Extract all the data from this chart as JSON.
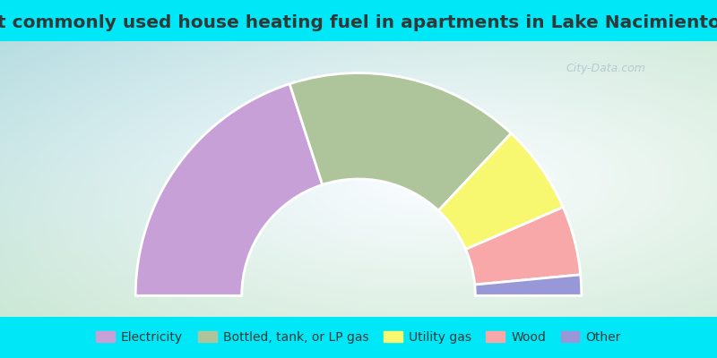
{
  "title": "Most commonly used house heating fuel in apartments in Lake Nacimiento, CA",
  "segments": [
    {
      "label": "Electricity",
      "value": 40,
      "color": "#c8a0d8"
    },
    {
      "label": "Bottled, tank, or LP gas",
      "value": 34,
      "color": "#aec49a"
    },
    {
      "label": "Utility gas",
      "value": 13,
      "color": "#f8f870"
    },
    {
      "label": "Wood",
      "value": 10,
      "color": "#f8a8a8"
    },
    {
      "label": "Other",
      "value": 3,
      "color": "#9898d8"
    }
  ],
  "cyan_color": "#00e8f8",
  "title_color": "#303838",
  "title_fontsize": 14.5,
  "legend_fontsize": 10,
  "watermark": "City-Data.com",
  "chart_bg_corners": [
    "#a8d8c8",
    "#d0e8d0",
    "#f0f8f4",
    "#e8f4e8"
  ]
}
